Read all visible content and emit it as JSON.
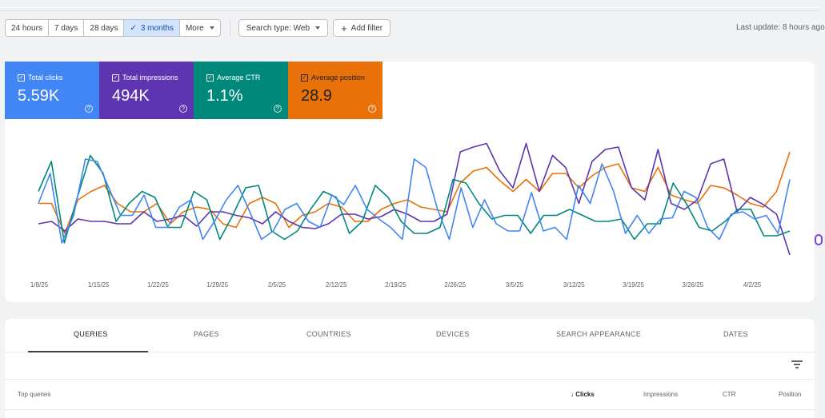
{
  "toolbar": {
    "ranges": [
      "24 hours",
      "7 days",
      "28 days",
      "3 months",
      "More"
    ],
    "active_range": "3 months",
    "search_type": "Search type: Web",
    "add_filter": "Add filter",
    "last_update": "Last update: 8 hours ago"
  },
  "metrics": [
    {
      "label": "Total clicks",
      "value": "5.59K",
      "color": "#4285f4"
    },
    {
      "label": "Total impressions",
      "value": "494K",
      "color": "#5e35b1"
    },
    {
      "label": "Average CTR",
      "value": "1.1%",
      "color": "#00897b"
    },
    {
      "label": "Average position",
      "value": "28.9",
      "color": "#e8710a"
    }
  ],
  "chart_data": {
    "type": "line",
    "x_ticks": [
      "1/8/25",
      "1/15/25",
      "1/22/25",
      "1/29/25",
      "2/5/25",
      "2/12/25",
      "2/19/25",
      "2/26/25",
      "3/5/25",
      "3/12/25",
      "3/19/25",
      "3/26/25",
      "4/2/25"
    ],
    "grid": false,
    "legend": "none",
    "series": [
      {
        "name": "Total clicks",
        "color": "#4285f4",
        "values": [
          45,
          70,
          12,
          35,
          82,
          80,
          58,
          35,
          35,
          52,
          25,
          25,
          42,
          48,
          15,
          30,
          48,
          60,
          38,
          15,
          22,
          40,
          45,
          30,
          25,
          52,
          44,
          60,
          40,
          32,
          25,
          15,
          82,
          75,
          40,
          15,
          58,
          25,
          48,
          28,
          22,
          22,
          54,
          22,
          25,
          15,
          60,
          45,
          78,
          55,
          20,
          35,
          20,
          32,
          33,
          55,
          50,
          25,
          15,
          36,
          38,
          32,
          35,
          20,
          65
        ]
      },
      {
        "name": "Total impressions",
        "color": "#5e35b1",
        "values": [
          28,
          30,
          22,
          32,
          30,
          30,
          28,
          28,
          38,
          30,
          32,
          35,
          26,
          38,
          38,
          35,
          33,
          28,
          38,
          30,
          25,
          24,
          28,
          36,
          36,
          32,
          34,
          40,
          36,
          30,
          30,
          36,
          88,
          92,
          95,
          72,
          58,
          95,
          55,
          85,
          75,
          45,
          80,
          90,
          92,
          58,
          48,
          90,
          45,
          40,
          48,
          78,
          82,
          38,
          50,
          44,
          36,
          2
        ]
      },
      {
        "name": "Average CTR",
        "color": "#00897b",
        "values": [
          55,
          80,
          12,
          50,
          85,
          70,
          30,
          45,
          55,
          50,
          25,
          25,
          55,
          48,
          15,
          35,
          58,
          60,
          22,
          15,
          22,
          40,
          55,
          50,
          20,
          30,
          60,
          50,
          30,
          20,
          20,
          25,
          65,
          62,
          45,
          32,
          35,
          35,
          20,
          35,
          35,
          40,
          35,
          30,
          30,
          32,
          15,
          28,
          28,
          62,
          45,
          25,
          22,
          30,
          40,
          40,
          18,
          18,
          22
        ]
      },
      {
        "name": "Average position",
        "color": "#e8710a",
        "values": [
          45,
          45,
          20,
          48,
          55,
          60,
          45,
          38,
          38,
          45,
          28,
          38,
          42,
          40,
          28,
          25,
          45,
          50,
          45,
          25,
          35,
          38,
          45,
          42,
          30,
          30,
          40,
          45,
          48,
          42,
          40,
          38,
          62,
          72,
          75,
          64,
          55,
          65,
          55,
          70,
          70,
          58,
          68,
          75,
          78,
          58,
          55,
          75,
          52,
          48,
          45,
          60,
          58,
          52,
          45,
          42,
          55,
          88
        ]
      }
    ]
  },
  "tabs": [
    "QUERIES",
    "PAGES",
    "COUNTRIES",
    "DEVICES",
    "SEARCH APPEARANCE",
    "DATES"
  ],
  "table": {
    "headers": {
      "top_queries": "Top queries",
      "clicks": "Clicks",
      "impressions": "Impressions",
      "ctr": "CTR",
      "position": "Position"
    }
  }
}
